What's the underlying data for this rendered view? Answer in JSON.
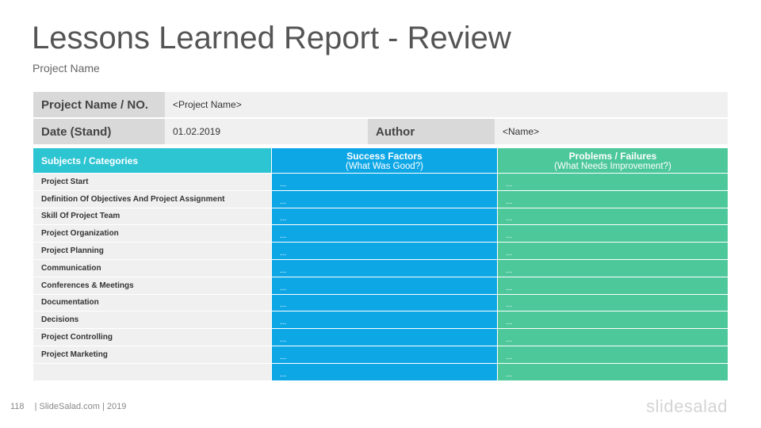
{
  "title": "Lessons Learned Report - Review",
  "subtitle": "Project Name",
  "info": {
    "project_label": "Project Name / NO.",
    "project_value": "<Project Name>",
    "date_label": "Date (Stand)",
    "date_value": "01.02.2019",
    "author_label": "Author",
    "author_value": "<Name>"
  },
  "table": {
    "col_subject": "Subjects / Categories",
    "col_success": "Success Factors",
    "col_success_sub": "(What Was Good?)",
    "col_problems": "Problems / Failures",
    "col_problems_sub": "(What Needs Improvement?)",
    "rows": [
      {
        "subject": "Project Start",
        "success": "...",
        "problems": "..."
      },
      {
        "subject": "Definition Of Objectives And Project Assignment",
        "success": "...",
        "problems": "..."
      },
      {
        "subject": "Skill Of Project Team",
        "success": "...",
        "problems": "..."
      },
      {
        "subject": "Project Organization",
        "success": "...",
        "problems": "..."
      },
      {
        "subject": "Project Planning",
        "success": "...",
        "problems": "..."
      },
      {
        "subject": "Communication",
        "success": "...",
        "problems": "..."
      },
      {
        "subject": "Conferences & Meetings",
        "success": "...",
        "problems": "..."
      },
      {
        "subject": "Documentation",
        "success": "...",
        "problems": "..."
      },
      {
        "subject": "Decisions",
        "success": "...",
        "problems": "..."
      },
      {
        "subject": "Project Controlling",
        "success": "...",
        "problems": "..."
      },
      {
        "subject": "Project Marketing",
        "success": "...",
        "problems": "..."
      },
      {
        "subject": "",
        "success": "...",
        "problems": "..."
      }
    ]
  },
  "footer": {
    "page_number": "118",
    "text": "| SlideSalad.com | 2019",
    "logo": "slidesalad"
  },
  "colors": {
    "header_cyan": "#2ec5d3",
    "success_blue": "#0ea7e6",
    "problems_green": "#4dc89a",
    "label_gray": "#d9d9d9",
    "cell_gray": "#f0f0f0"
  }
}
